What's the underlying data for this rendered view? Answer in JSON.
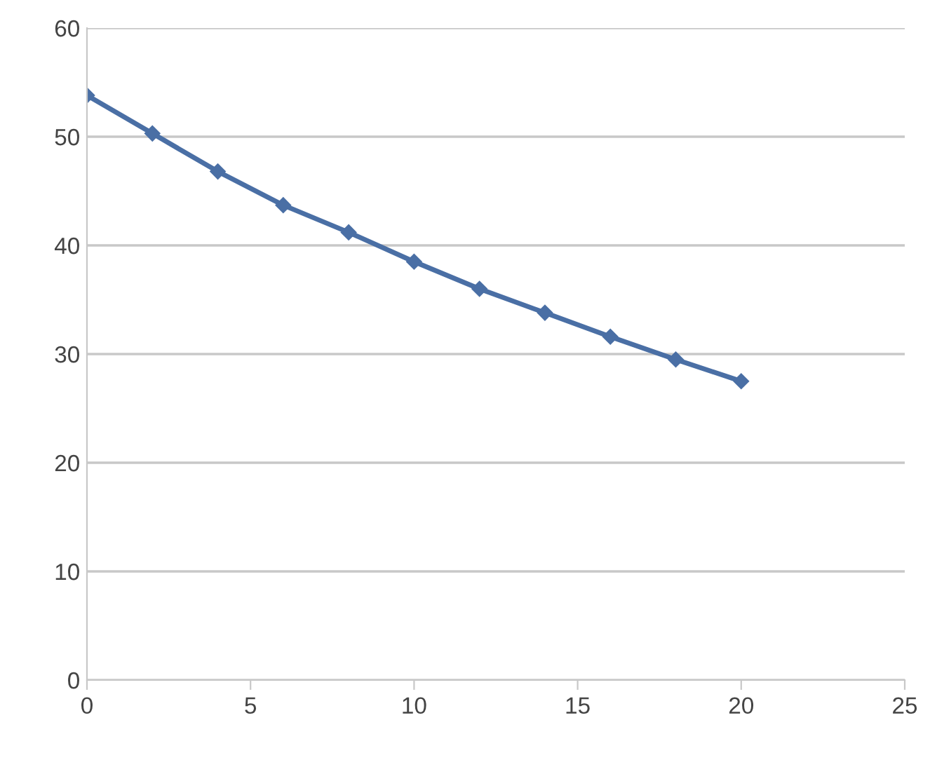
{
  "chart_data": {
    "type": "line",
    "x": [
      0,
      2,
      4,
      6,
      8,
      10,
      12,
      14,
      16,
      18,
      20
    ],
    "series": [
      {
        "color": "#4a6fa5",
        "values": [
          53.8,
          50.3,
          46.8,
          43.7,
          41.2,
          38.5,
          36.0,
          33.8,
          31.6,
          29.5,
          27.5
        ]
      }
    ],
    "xlim": [
      0,
      25
    ],
    "xticks": [
      0,
      5,
      10,
      15,
      20,
      25
    ],
    "ylim": [
      0,
      60
    ],
    "yticks": [
      0,
      10,
      20,
      30,
      40,
      50,
      60
    ],
    "grid": "y",
    "marker": "diamond",
    "line_style": "solid"
  }
}
